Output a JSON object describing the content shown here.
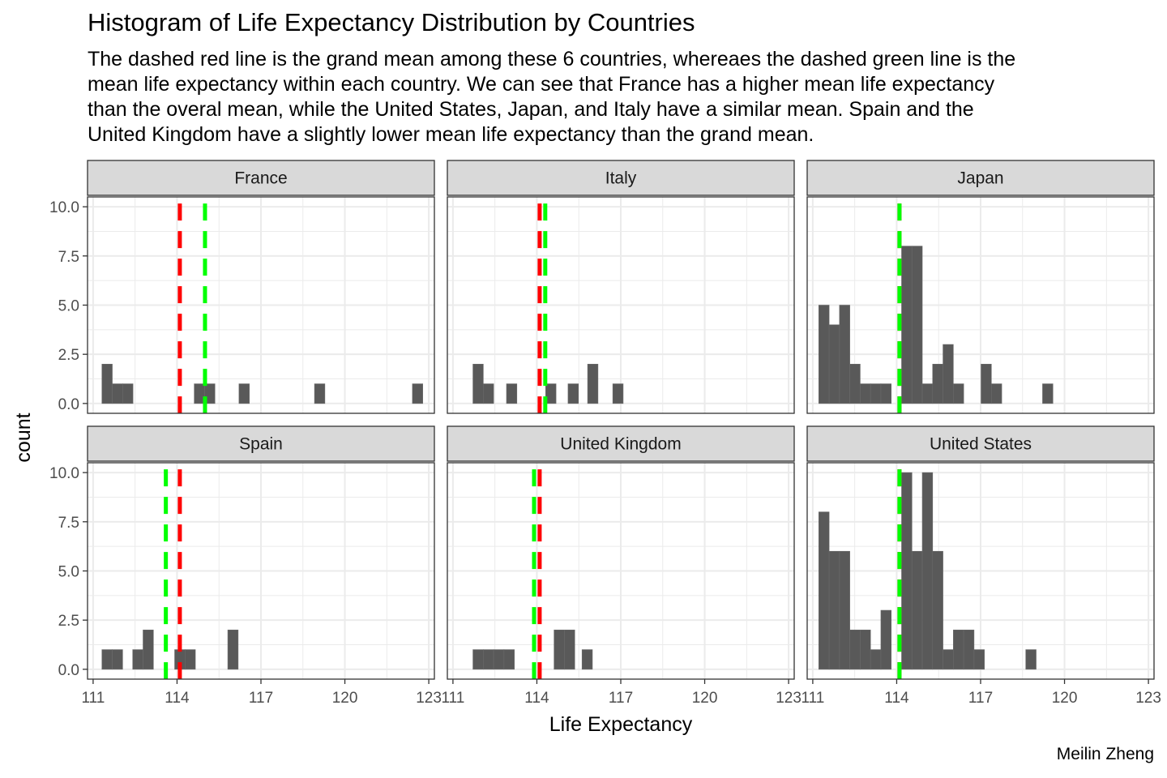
{
  "title": "Histogram of Life Expectancy Distribution by Countries",
  "subtitle": "The dashed red line is the grand mean among these 6 countries, whereaes the dashed green line is the\nmean life expectancy within each country. We can see that France has a higher mean life expectancy\nthan the overal mean, while the United States, Japan, and Italy have a similar mean. Spain and the\nUnited Kingdom have a slightly lower mean life expectancy than the grand mean.",
  "caption": "Meilin Zheng",
  "colors": {
    "bar": "#595959",
    "grand_mean": "#ff0000",
    "country_mean": "#00ff00",
    "strip": "#d9d9d9",
    "grid": "#ebebeb"
  },
  "chart_data": {
    "type": "bar",
    "subtype": "faceted-histogram",
    "xlabel": "Life Expectancy",
    "ylabel": "count",
    "xlim": [
      110.8,
      123.2
    ],
    "ylim": [
      -0.5,
      10.5
    ],
    "x_ticks": [
      111,
      114,
      117,
      120,
      123
    ],
    "y_ticks": [
      0.0,
      2.5,
      5.0,
      7.5,
      10.0
    ],
    "y_tick_labels": [
      "0.0",
      "2.5",
      "5.0",
      "7.5",
      "10.0"
    ],
    "grid": true,
    "bin_width": 0.37,
    "grand_mean": 114.1,
    "facets": [
      {
        "name": "France",
        "mean": 115.0,
        "bins": [
          {
            "x": 111.5,
            "count": 2
          },
          {
            "x": 111.87,
            "count": 1
          },
          {
            "x": 112.24,
            "count": 1
          },
          {
            "x": 114.8,
            "count": 1
          },
          {
            "x": 115.17,
            "count": 1
          },
          {
            "x": 116.4,
            "count": 1
          },
          {
            "x": 119.1,
            "count": 1
          },
          {
            "x": 122.6,
            "count": 1
          }
        ]
      },
      {
        "name": "Italy",
        "mean": 114.3,
        "bins": [
          {
            "x": 111.9,
            "count": 2
          },
          {
            "x": 112.27,
            "count": 1
          },
          {
            "x": 113.1,
            "count": 1
          },
          {
            "x": 114.5,
            "count": 1
          },
          {
            "x": 115.3,
            "count": 1
          },
          {
            "x": 116.0,
            "count": 2
          },
          {
            "x": 116.9,
            "count": 1
          }
        ]
      },
      {
        "name": "Japan",
        "mean": 114.1,
        "bins": [
          {
            "x": 111.4,
            "count": 5
          },
          {
            "x": 111.77,
            "count": 4
          },
          {
            "x": 112.14,
            "count": 5
          },
          {
            "x": 112.51,
            "count": 2
          },
          {
            "x": 112.88,
            "count": 1
          },
          {
            "x": 113.25,
            "count": 1
          },
          {
            "x": 113.62,
            "count": 1
          },
          {
            "x": 114.36,
            "count": 8
          },
          {
            "x": 114.73,
            "count": 8
          },
          {
            "x": 115.1,
            "count": 1
          },
          {
            "x": 115.47,
            "count": 2
          },
          {
            "x": 115.84,
            "count": 3
          },
          {
            "x": 116.21,
            "count": 1
          },
          {
            "x": 117.2,
            "count": 2
          },
          {
            "x": 117.57,
            "count": 1
          },
          {
            "x": 119.4,
            "count": 1
          }
        ]
      },
      {
        "name": "Spain",
        "mean": 113.6,
        "bins": [
          {
            "x": 111.5,
            "count": 1
          },
          {
            "x": 111.87,
            "count": 1
          },
          {
            "x": 112.6,
            "count": 1
          },
          {
            "x": 112.97,
            "count": 2
          },
          {
            "x": 114.1,
            "count": 1
          },
          {
            "x": 114.47,
            "count": 1
          },
          {
            "x": 116.0,
            "count": 2
          }
        ]
      },
      {
        "name": "United Kingdom",
        "mean": 113.9,
        "bins": [
          {
            "x": 111.9,
            "count": 1
          },
          {
            "x": 112.27,
            "count": 1
          },
          {
            "x": 112.64,
            "count": 1
          },
          {
            "x": 113.01,
            "count": 1
          },
          {
            "x": 114.8,
            "count": 2
          },
          {
            "x": 115.17,
            "count": 2
          },
          {
            "x": 115.8,
            "count": 1
          }
        ]
      },
      {
        "name": "United States",
        "mean": 114.1,
        "bins": [
          {
            "x": 111.4,
            "count": 8
          },
          {
            "x": 111.77,
            "count": 6
          },
          {
            "x": 112.14,
            "count": 6
          },
          {
            "x": 112.51,
            "count": 2
          },
          {
            "x": 112.88,
            "count": 2
          },
          {
            "x": 113.25,
            "count": 1
          },
          {
            "x": 113.62,
            "count": 3
          },
          {
            "x": 114.36,
            "count": 10
          },
          {
            "x": 114.73,
            "count": 6
          },
          {
            "x": 115.1,
            "count": 10
          },
          {
            "x": 115.47,
            "count": 6
          },
          {
            "x": 115.84,
            "count": 1
          },
          {
            "x": 116.21,
            "count": 2
          },
          {
            "x": 116.58,
            "count": 2
          },
          {
            "x": 116.95,
            "count": 1
          },
          {
            "x": 118.8,
            "count": 1
          }
        ]
      }
    ]
  }
}
